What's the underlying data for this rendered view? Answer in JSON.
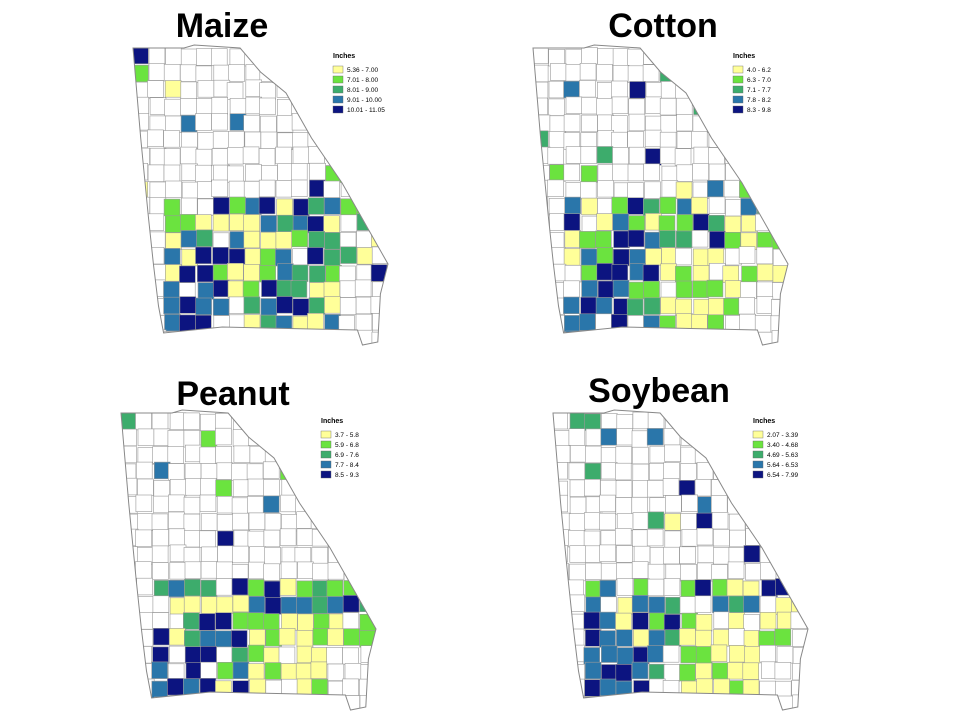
{
  "panels": [
    {
      "title": "Maize",
      "legend_title": "Inches",
      "legend": [
        {
          "label": "5.36 - 7.00",
          "color": "#ffff99"
        },
        {
          "label": "7.01 - 8.00",
          "color": "#6be33f"
        },
        {
          "label": "8.01 - 9.00",
          "color": "#3dac6c"
        },
        {
          "label": "9.01 - 10.00",
          "color": "#2a76aa"
        },
        {
          "label": "10.01 - 11.05",
          "color": "#0c1480"
        }
      ]
    },
    {
      "title": "Cotton",
      "legend_title": "Inches",
      "legend": [
        {
          "label": "4.0 - 6.2",
          "color": "#ffff99"
        },
        {
          "label": "6.3 - 7.0",
          "color": "#6be33f"
        },
        {
          "label": "7.1 - 7.7",
          "color": "#3dac6c"
        },
        {
          "label": "7.8 - 8.2",
          "color": "#2a76aa"
        },
        {
          "label": "8.3 - 9.8",
          "color": "#0c1480"
        }
      ]
    },
    {
      "title": "Peanut",
      "legend_title": "Inches",
      "legend": [
        {
          "label": "3.7 - 5.8",
          "color": "#ffff99"
        },
        {
          "label": "5.9 - 6.8",
          "color": "#6be33f"
        },
        {
          "label": "6.9 - 7.6",
          "color": "#3dac6c"
        },
        {
          "label": "7.7 - 8.4",
          "color": "#2a76aa"
        },
        {
          "label": "8.5 - 9.3",
          "color": "#0c1480"
        }
      ]
    },
    {
      "title": "Soybean",
      "legend_title": "Inches",
      "legend": [
        {
          "label": "2.07 - 3.39",
          "color": "#ffff99"
        },
        {
          "label": "3.40 - 4.68",
          "color": "#6be33f"
        },
        {
          "label": "4.69 - 5.63",
          "color": "#3dac6c"
        },
        {
          "label": "5.64 - 6.53",
          "color": "#2a76aa"
        },
        {
          "label": "6.54 - 7.99",
          "color": "#0c1480"
        }
      ]
    }
  ]
}
